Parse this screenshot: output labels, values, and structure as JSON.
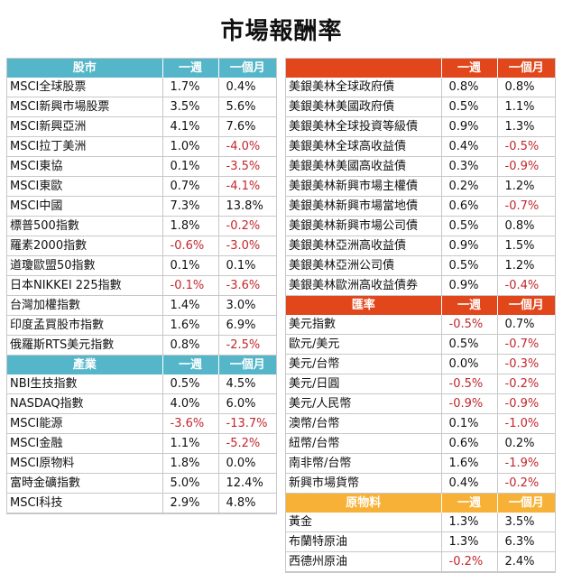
{
  "title": "市場報酬率",
  "colors": {
    "stock": "#56b6c9",
    "bond": "#e2461b",
    "fx": "#e2461b",
    "commodity": "#f8b137"
  },
  "headers": {
    "week": "一週",
    "month": "一個月"
  },
  "sections": {
    "stocks": {
      "label": "股市",
      "rows": [
        [
          "MSCI全球股票",
          "1.7%",
          "0.4%"
        ],
        [
          "MSCI新興市場股票",
          "3.5%",
          "5.6%"
        ],
        [
          "MSCI新興亞洲",
          "4.1%",
          "7.6%"
        ],
        [
          "MSCI拉丁美洲",
          "1.0%",
          "-4.0%"
        ],
        [
          "MSCI東協",
          "0.1%",
          "-3.5%"
        ],
        [
          "MSCI東歐",
          "0.7%",
          "-4.1%"
        ],
        [
          "MSCI中國",
          "7.3%",
          "13.8%"
        ],
        [
          "標普500指數",
          "1.8%",
          "-0.2%"
        ],
        [
          "羅素2000指數",
          "-0.6%",
          "-3.0%"
        ],
        [
          "道瓊歐盟50指數",
          "0.1%",
          "0.1%"
        ],
        [
          "日本NIKKEI 225指數",
          "-0.1%",
          "-3.6%"
        ],
        [
          "台灣加權指數",
          "1.4%",
          "3.0%"
        ],
        [
          "印度孟買股市指數",
          "1.6%",
          "6.9%"
        ],
        [
          "俄羅斯RTS美元指數",
          "0.8%",
          "-2.5%"
        ]
      ]
    },
    "industry": {
      "label": "產業",
      "rows": [
        [
          "NBI生技指數",
          "0.5%",
          "4.5%"
        ],
        [
          "NASDAQ指數",
          "4.0%",
          "6.0%"
        ],
        [
          "MSCI能源",
          "-3.6%",
          "-13.7%"
        ],
        [
          "MSCI金融",
          "1.1%",
          "-5.2%"
        ],
        [
          "MSCI原物料",
          "1.8%",
          "0.0%"
        ],
        [
          "富時金礦指數",
          "5.0%",
          "12.4%"
        ],
        [
          "MSCI科技",
          "2.9%",
          "4.8%"
        ]
      ]
    },
    "bonds": {
      "label": "",
      "rows": [
        [
          "美銀美林全球政府債",
          "0.8%",
          "0.8%"
        ],
        [
          "美銀美林美國政府債",
          "0.5%",
          "1.1%"
        ],
        [
          "美銀美林全球投資等級債",
          "0.9%",
          "1.3%"
        ],
        [
          "美銀美林全球高收益債",
          "0.4%",
          "-0.5%"
        ],
        [
          "美銀美林美國高收益債",
          "0.3%",
          "-0.9%"
        ],
        [
          "美銀美林新興市場主權債",
          "0.2%",
          "1.2%"
        ],
        [
          "美銀美林新興市場當地債",
          "0.6%",
          "-0.7%"
        ],
        [
          "美銀美林新興市場公司債",
          "0.5%",
          "0.8%"
        ],
        [
          "美銀美林亞洲高收益債",
          "0.9%",
          "1.5%"
        ],
        [
          "美銀美林亞洲公司債",
          "0.5%",
          "1.2%"
        ],
        [
          "美銀美林歐洲高收益債券",
          "0.9%",
          "-0.4%"
        ]
      ]
    },
    "fx": {
      "label": "匯率",
      "rows": [
        [
          "美元指數",
          "-0.5%",
          "0.7%"
        ],
        [
          "歐元/美元",
          "0.5%",
          "-0.7%"
        ],
        [
          "美元/台幣",
          "0.0%",
          "-0.3%"
        ],
        [
          "美元/日圓",
          "-0.5%",
          "-0.2%"
        ],
        [
          "美元/人民幣",
          "-0.9%",
          "-0.9%"
        ],
        [
          "澳幣/台幣",
          "0.1%",
          "-1.0%"
        ],
        [
          "紐幣/台幣",
          "0.6%",
          "0.2%"
        ],
        [
          "南非幣/台幣",
          "1.6%",
          "-1.9%"
        ],
        [
          "新興市場貨幣",
          "0.4%",
          "-0.2%"
        ]
      ]
    },
    "commodity": {
      "label": "原物料",
      "rows": [
        [
          "黃金",
          "1.3%",
          "3.5%"
        ],
        [
          "布蘭特原油",
          "1.3%",
          "6.3%"
        ],
        [
          "西德州原油",
          "-0.2%",
          "2.4%"
        ]
      ]
    }
  }
}
